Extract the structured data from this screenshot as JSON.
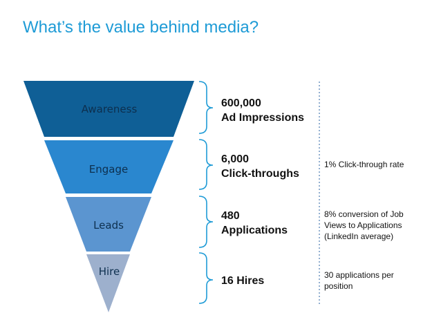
{
  "title": "What’s the value behind media?",
  "colors": {
    "title": "#1e9bd6",
    "awareness": "#0f5f96",
    "engage": "#2a87cf",
    "leads": "#5b95d0",
    "hire": "#9db0cd",
    "bracket": "#1e9bd6",
    "divider": "#4a7ab0"
  },
  "stages": [
    {
      "label": "Awareness",
      "metric_line1": "600,000",
      "metric_line2": "Ad Impressions",
      "note": ""
    },
    {
      "label": "Engage",
      "metric_line1": "6,000",
      "metric_line2": "Click-throughs",
      "note": "1% Click-through rate"
    },
    {
      "label": "Leads",
      "metric_line1": "480",
      "metric_line2": "Applications",
      "note_line1": "8% conversion of Job",
      "note_line2": "Views to Applications",
      "note_line3": "(LinkedIn average)"
    },
    {
      "label": "Hire",
      "metric_line1": "16 Hires",
      "note_line1": "30 applications per",
      "note_line2": "position"
    }
  ]
}
